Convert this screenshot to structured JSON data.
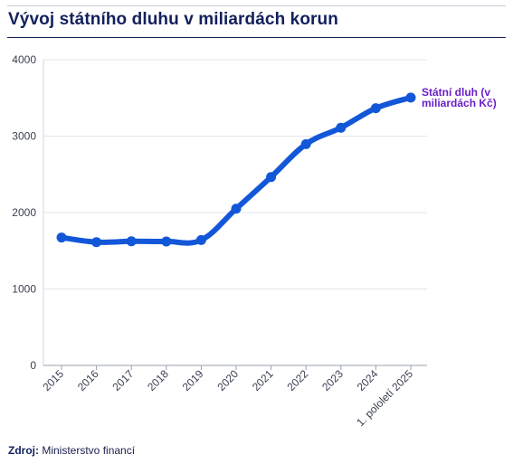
{
  "header": {
    "title": "Vývoj státního dluhu v miliardách korun"
  },
  "footer": {
    "source_label": "Zdroj:",
    "source_value": "Ministerstvo financí"
  },
  "chart_data": {
    "type": "line",
    "title": "Vývoj státního dluhu v miliardách korun",
    "xlabel": "",
    "ylabel": "",
    "categories": [
      "2015",
      "2016",
      "2017",
      "2018",
      "2019",
      "2020",
      "2021",
      "2022",
      "2023",
      "2024",
      "1. pololetí 2025"
    ],
    "series": [
      {
        "name": "Státní dluh (v miliardách Kč)",
        "values": [
          1673,
          1613,
          1624,
          1622,
          1640,
          2050,
          2465,
          2895,
          3110,
          3365,
          3505
        ],
        "color": "#1357d9"
      }
    ],
    "ylim": [
      0,
      4000
    ],
    "yticks": [
      0,
      1000,
      2000,
      3000,
      4000
    ],
    "grid": true,
    "legend": "inline label at end of line",
    "label_color": "#6a1fc8",
    "tick_color": "#3a3f52"
  }
}
